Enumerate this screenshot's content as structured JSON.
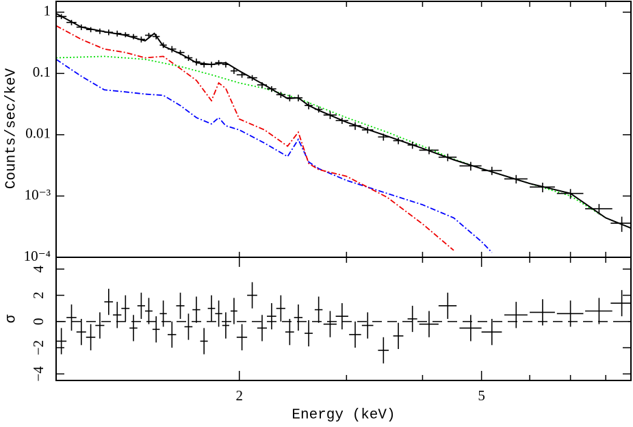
{
  "chart_data": [
    {
      "type": "line",
      "ylabel": "Counts/sec/keV",
      "log_x": true,
      "log_y": true,
      "xlim": [
        1,
        8.8
      ],
      "ylim": [
        0.0001,
        1.5
      ],
      "yticks": [
        1,
        0.1,
        0.01,
        {
          "value": 0.001,
          "label": "10⁻³"
        },
        {
          "value": 0.0001,
          "label": "10⁻⁴"
        }
      ],
      "xminor_ticks": [
        2,
        3,
        4,
        5,
        6,
        7,
        8
      ],
      "series": [
        {
          "color": "#00f",
          "style": "dashdot",
          "x": [
            1.0,
            1.1,
            1.2,
            1.3,
            1.4,
            1.5,
            1.6,
            1.7,
            1.8,
            1.85,
            1.9,
            2.0,
            2.2,
            2.4,
            2.5,
            2.6,
            2.7,
            3.0,
            3.5,
            4.0,
            4.5,
            5.0,
            5.2
          ],
          "values": [
            0.17,
            0.09,
            0.054,
            0.05,
            0.046,
            0.044,
            0.03,
            0.019,
            0.015,
            0.019,
            0.014,
            0.012,
            0.0073,
            0.0044,
            0.0084,
            0.0036,
            0.0028,
            0.0018,
            0.0011,
            0.00072,
            0.00044,
            0.00018,
            0.00012
          ]
        },
        {
          "color": "#e00",
          "style": "dashdot",
          "x": [
            1.0,
            1.1,
            1.2,
            1.3,
            1.4,
            1.5,
            1.6,
            1.7,
            1.8,
            1.85,
            1.9,
            2.0,
            2.2,
            2.4,
            2.5,
            2.6,
            2.7,
            3.0,
            3.5,
            4.0,
            4.5
          ],
          "values": [
            0.6,
            0.36,
            0.25,
            0.22,
            0.18,
            0.19,
            0.12,
            0.077,
            0.036,
            0.07,
            0.057,
            0.018,
            0.012,
            0.0065,
            0.011,
            0.0034,
            0.0027,
            0.0021,
            0.00095,
            0.00035,
            0.00013
          ]
        },
        {
          "color": "#0d0",
          "style": "dotted",
          "x": [
            1.0,
            1.2,
            1.4,
            1.6,
            1.8,
            2.0,
            2.2,
            2.5,
            3.0,
            3.5,
            4.0,
            4.5,
            5.0,
            6.0,
            7.0,
            8.0,
            8.8
          ],
          "values": [
            0.18,
            0.19,
            0.17,
            0.13,
            0.095,
            0.07,
            0.057,
            0.039,
            0.019,
            0.011,
            0.0065,
            0.004,
            0.0028,
            0.0016,
            0.001,
            0.00044,
            0.0003
          ]
        },
        {
          "color": "#000",
          "style": "solid",
          "x": [
            1.0,
            1.1,
            1.2,
            1.3,
            1.4,
            1.45,
            1.5,
            1.6,
            1.7,
            1.8,
            1.9,
            2.0,
            2.2,
            2.4,
            2.5,
            2.6,
            2.7,
            3.0,
            3.5,
            4.0,
            4.5,
            5.0,
            6.0,
            7.0,
            8.0,
            8.8
          ],
          "values": [
            0.95,
            0.57,
            0.48,
            0.42,
            0.34,
            0.45,
            0.28,
            0.21,
            0.15,
            0.14,
            0.15,
            0.11,
            0.065,
            0.039,
            0.04,
            0.03,
            0.025,
            0.016,
            0.0095,
            0.006,
            0.0039,
            0.0028,
            0.0016,
            0.0011,
            0.00044,
            0.0003
          ]
        },
        {
          "color": "#000",
          "style": "errorbar",
          "x": [
            1.02,
            1.06,
            1.1,
            1.14,
            1.18,
            1.22,
            1.26,
            1.3,
            1.34,
            1.38,
            1.42,
            1.46,
            1.5,
            1.55,
            1.6,
            1.65,
            1.7,
            1.75,
            1.8,
            1.85,
            1.9,
            1.96,
            2.02,
            2.1,
            2.18,
            2.26,
            2.34,
            2.42,
            2.5,
            2.6,
            2.7,
            2.82,
            2.95,
            3.1,
            3.25,
            3.45,
            3.65,
            3.85,
            4.1,
            4.4,
            4.8,
            5.2,
            5.7,
            6.3,
            7.0,
            7.8,
            8.5
          ],
          "values": [
            0.85,
            0.68,
            0.57,
            0.52,
            0.49,
            0.47,
            0.45,
            0.43,
            0.4,
            0.36,
            0.42,
            0.4,
            0.29,
            0.25,
            0.22,
            0.18,
            0.155,
            0.14,
            0.14,
            0.15,
            0.14,
            0.11,
            0.095,
            0.085,
            0.065,
            0.056,
            0.045,
            0.04,
            0.04,
            0.03,
            0.026,
            0.021,
            0.017,
            0.014,
            0.012,
            0.0092,
            0.008,
            0.0068,
            0.0056,
            0.0043,
            0.0031,
            0.0026,
            0.0019,
            0.0014,
            0.0011,
            0.00062,
            0.00036
          ],
          "errors": [
            0.08,
            0.07,
            0.06,
            0.05,
            0.05,
            0.05,
            0.05,
            0.04,
            0.04,
            0.04,
            0.04,
            0.04,
            0.03,
            0.03,
            0.02,
            0.02,
            0.02,
            0.015,
            0.015,
            0.015,
            0.015,
            0.012,
            0.01,
            0.009,
            0.007,
            0.006,
            0.005,
            0.005,
            0.005,
            0.004,
            0.003,
            0.003,
            0.002,
            0.002,
            0.0015,
            0.0012,
            0.001,
            0.0009,
            0.0008,
            0.0006,
            0.0005,
            0.0004,
            0.0003,
            0.00025,
            0.0002,
            0.00012,
            0.0001
          ],
          "xerr": [
            0.02,
            0.02,
            0.02,
            0.02,
            0.02,
            0.02,
            0.02,
            0.02,
            0.02,
            0.02,
            0.02,
            0.02,
            0.02,
            0.025,
            0.025,
            0.025,
            0.025,
            0.025,
            0.025,
            0.025,
            0.025,
            0.025,
            0.04,
            0.04,
            0.04,
            0.04,
            0.04,
            0.04,
            0.04,
            0.04,
            0.04,
            0.07,
            0.07,
            0.07,
            0.07,
            0.07,
            0.07,
            0.07,
            0.15,
            0.15,
            0.2,
            0.2,
            0.25,
            0.3,
            0.35,
            0.4,
            0.35
          ]
        }
      ]
    },
    {
      "type": "errorbar",
      "ylabel": "σ",
      "xlabel": "Energy (keV)",
      "log_x": true,
      "xlim": [
        1,
        8.8
      ],
      "ylim": [
        -4.5,
        4.9
      ],
      "yticks": [
        {
          "value": -4,
          "label": "−4"
        },
        {
          "value": -2,
          "label": "−2"
        },
        0,
        2,
        4
      ],
      "xticks": [
        2,
        5
      ],
      "xminor_ticks": [
        3,
        4,
        6,
        7,
        8
      ],
      "zero_line": true,
      "color": "#000",
      "x": [
        1.02,
        1.06,
        1.1,
        1.14,
        1.18,
        1.22,
        1.26,
        1.3,
        1.34,
        1.38,
        1.42,
        1.46,
        1.5,
        1.55,
        1.6,
        1.65,
        1.7,
        1.75,
        1.8,
        1.85,
        1.9,
        1.96,
        2.02,
        2.1,
        2.18,
        2.26,
        2.34,
        2.42,
        2.5,
        2.6,
        2.7,
        2.82,
        2.95,
        3.1,
        3.25,
        3.45,
        3.65,
        3.85,
        4.1,
        4.4,
        4.8,
        5.2,
        5.7,
        6.3,
        7.0,
        7.8,
        8.5
      ],
      "values": [
        -1.5,
        0.3,
        -0.8,
        -1.2,
        -0.3,
        1.5,
        0.5,
        1.0,
        -0.5,
        1.2,
        0.8,
        -0.6,
        0.6,
        -1.0,
        1.2,
        -0.4,
        0.9,
        -1.5,
        1.0,
        0.6,
        -0.3,
        0.8,
        -1.2,
        2.0,
        -0.5,
        0.4,
        1.0,
        -0.8,
        0.3,
        -0.9,
        0.9,
        -0.2,
        0.4,
        -1.0,
        -0.3,
        -2.2,
        -1.1,
        0.2,
        -0.2,
        1.2,
        -0.5,
        -0.8,
        0.5,
        0.7,
        0.6,
        0.8,
        1.4
      ],
      "errors": [
        1,
        1,
        1,
        1,
        1,
        1,
        1,
        1,
        1,
        1,
        1,
        1,
        1,
        1,
        1,
        1,
        1,
        1,
        1,
        1,
        1,
        1,
        1,
        1,
        1,
        1,
        1,
        1,
        1,
        1,
        1,
        1,
        1,
        1,
        1,
        1,
        1,
        1,
        1,
        1,
        1,
        1,
        1,
        1,
        1,
        1,
        1
      ],
      "xerr": [
        0.02,
        0.02,
        0.02,
        0.02,
        0.02,
        0.02,
        0.02,
        0.02,
        0.02,
        0.02,
        0.02,
        0.02,
        0.02,
        0.025,
        0.025,
        0.025,
        0.025,
        0.025,
        0.025,
        0.025,
        0.025,
        0.025,
        0.04,
        0.04,
        0.04,
        0.04,
        0.04,
        0.04,
        0.04,
        0.04,
        0.04,
        0.07,
        0.07,
        0.07,
        0.07,
        0.07,
        0.07,
        0.07,
        0.15,
        0.15,
        0.2,
        0.2,
        0.25,
        0.3,
        0.35,
        0.4,
        0.35
      ]
    }
  ]
}
